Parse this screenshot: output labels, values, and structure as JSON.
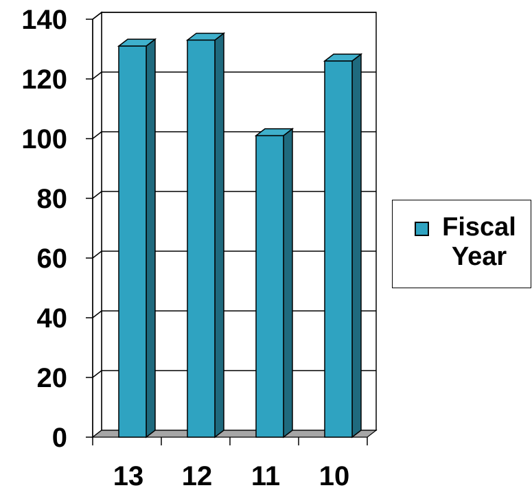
{
  "chart_data": {
    "type": "bar",
    "style": "3d-column",
    "categories": [
      "13",
      "12",
      "11",
      "10"
    ],
    "series": [
      {
        "name": "Fiscal\nYear",
        "values": [
          131,
          133,
          101,
          126
        ]
      }
    ],
    "ylim": [
      0,
      140
    ],
    "yticks": [
      "0",
      "20",
      "40",
      "60",
      "80",
      "100",
      "120",
      "140"
    ],
    "grid": true,
    "legend": "right",
    "colors": {
      "bar_front": "#2fa3c1",
      "bar_top": "#3fb0cc",
      "bar_side": "#1f6a7e",
      "floor": "#a6a6a6"
    }
  }
}
